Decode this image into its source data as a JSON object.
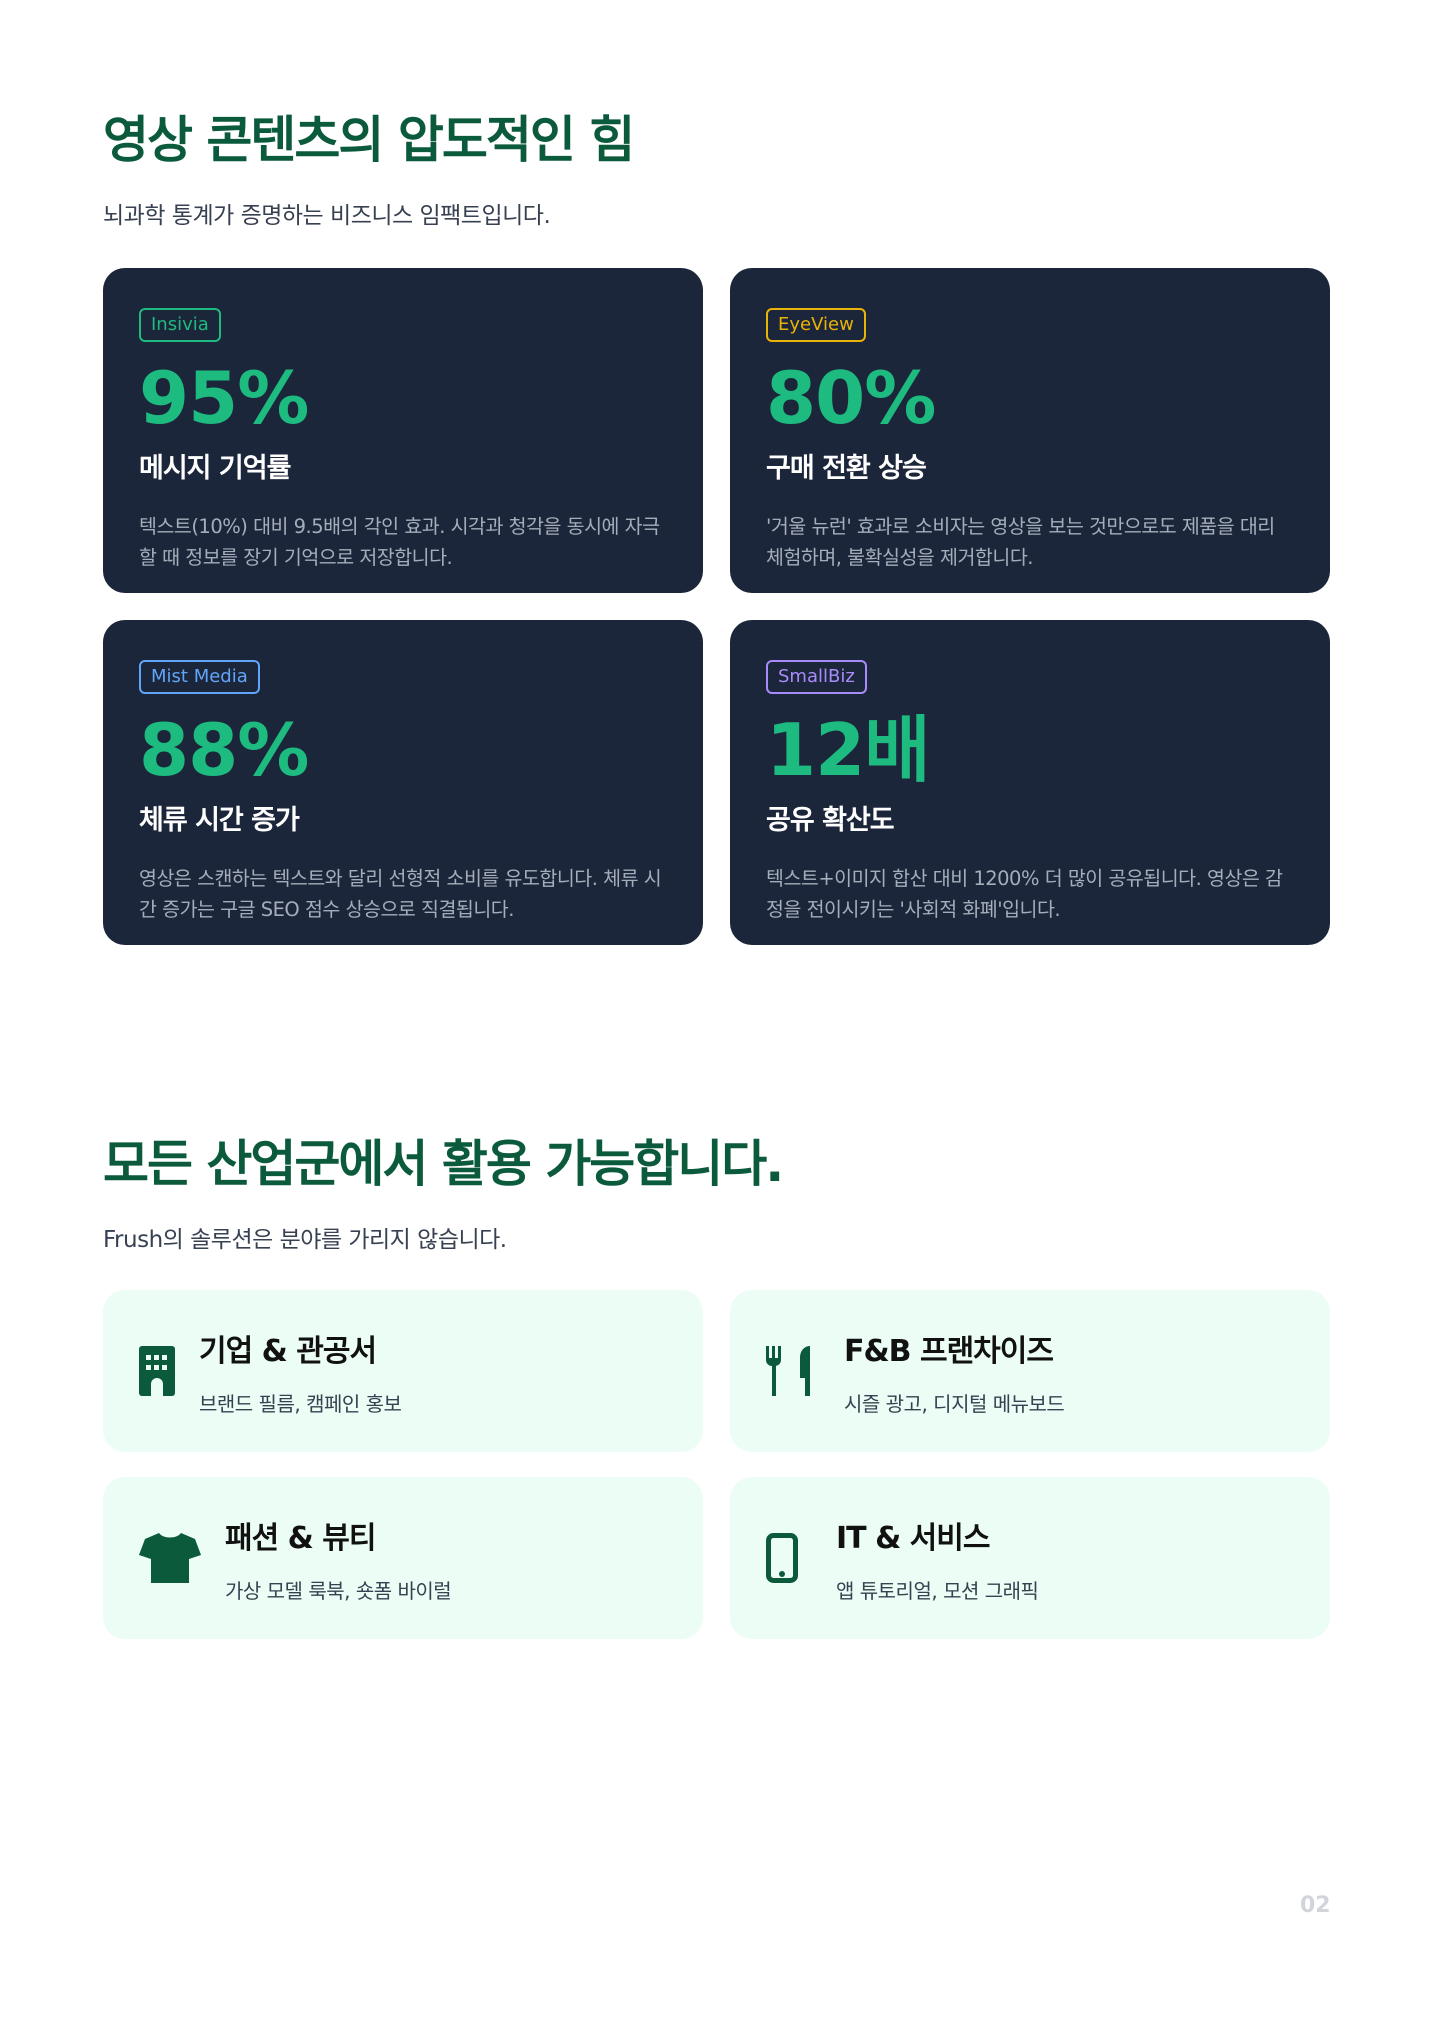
{
  "section1": {
    "title": "영상 콘텐츠의 압도적인 힘",
    "subtitle": "뇌과학 통계가 증명하는 비즈니스 임팩트입니다.",
    "cards": [
      {
        "source": "Insivia",
        "source_color": "#1dbb7f",
        "value": "95%",
        "label": "메시지 기억률",
        "description": "텍스트(10%) 대비 9.5배의 각인 효과. 시각과 청각을 동시에 자극할 때 정보를 장기 기억으로 저장합니다."
      },
      {
        "source": "EyeView",
        "source_color": "#eab308",
        "value": "80%",
        "label": "구매 전환 상승",
        "description": "'거울 뉴런' 효과로 소비자는 영상을 보는 것만으로도 제품을 대리 체험하며, 불확실성을 제거합니다."
      },
      {
        "source": "Mist Media",
        "source_color": "#60a5fa",
        "value": "88%",
        "label": "체류 시간 증가",
        "description": "영상은 스캔하는 텍스트와 달리 선형적 소비를 유도합니다. 체류 시간 증가는 구글 SEO 점수 상승으로 직결됩니다."
      },
      {
        "source": "SmallBiz",
        "source_color": "#a78bfa",
        "value": "12배",
        "label": "공유 확산도",
        "description": "텍스트+이미지 합산 대비 1200% 더 많이 공유됩니다. 영상은 감정을 전이시키는 '사회적 화폐'입니다."
      }
    ]
  },
  "section2": {
    "title": "모든 산업군에서 활용 가능합니다.",
    "subtitle": "Frush의 솔루션은 분야를 가리지 않습니다.",
    "industries": [
      {
        "icon": "building-icon",
        "title": "기업 & 관공서",
        "description": "브랜드 필름, 캠페인 홍보"
      },
      {
        "icon": "utensils-icon",
        "title": "F&B 프랜차이즈",
        "description": "시즐 광고, 디지털 메뉴보드"
      },
      {
        "icon": "shirt-icon",
        "title": "패션 & 뷰티",
        "description": "가상 모델 룩북, 숏폼 바이럴"
      },
      {
        "icon": "mobile-icon",
        "title": "IT & 서비스",
        "description": "앱 튜토리얼, 모션 그래픽"
      }
    ]
  },
  "page_number": "02",
  "colors": {
    "accent": "#0b5a3c",
    "card_dark": "#1c263a",
    "stat_green": "#1dbb7f",
    "card_mint": "#ebfdf4"
  }
}
